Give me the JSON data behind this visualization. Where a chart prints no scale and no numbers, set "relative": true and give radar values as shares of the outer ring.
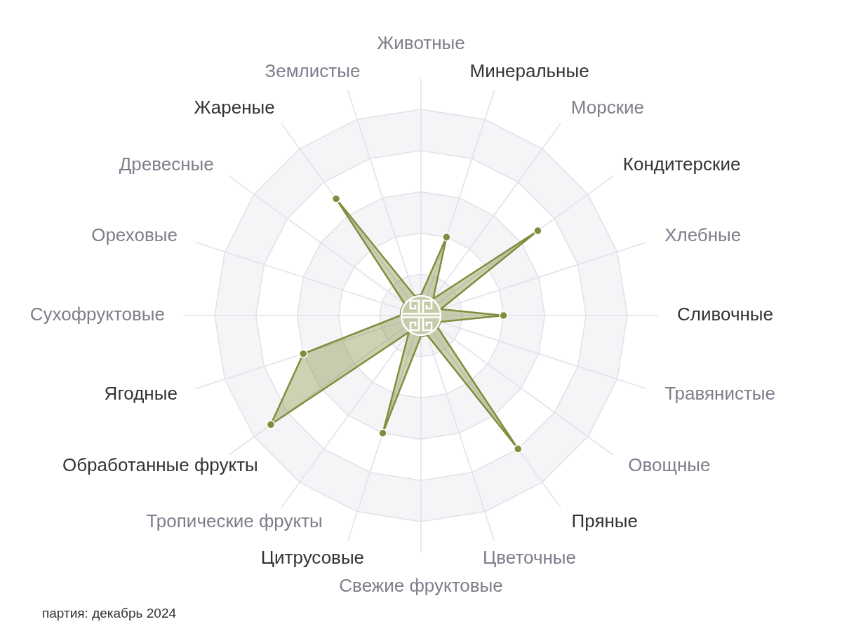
{
  "chart_data": {
    "type": "radar",
    "relative": true,
    "categories": [
      "Животные",
      "Минеральные",
      "Морские",
      "Кондитерские",
      "Хлебные",
      "Сливочные",
      "Травянистые",
      "Овощные",
      "Пряные",
      "Цветочные",
      "Свежие фруктовые",
      "Цитрусовые",
      "Тропические фрукты",
      "Обработанные фрукты",
      "Ягодные",
      "Сухофруктовые",
      "Ореховые",
      "Древесные",
      "Жареные",
      "Землистые"
    ],
    "series": [
      {
        "color": "#7f8e3e",
        "values": [
          0.1,
          0.4,
          0.1,
          0.7,
          0.1,
          0.4,
          0.1,
          0.1,
          0.8,
          0.1,
          0.1,
          0.6,
          0.1,
          0.9,
          0.6,
          0.1,
          0.1,
          0.1,
          0.7,
          0.1
        ]
      }
    ],
    "grid": true,
    "marker": "circle",
    "annotations": [
      "партия: декабрь 2024"
    ]
  }
}
